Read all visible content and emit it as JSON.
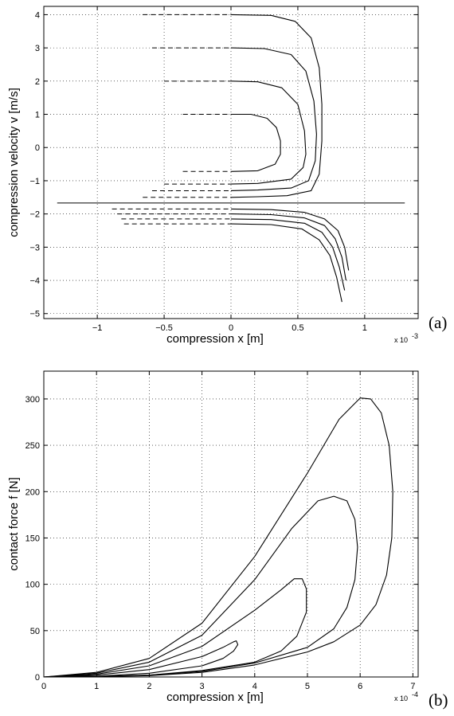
{
  "chart_data": [
    {
      "type": "line",
      "panel_label": "(a)",
      "title": "",
      "xlabel": "compression x [m]",
      "ylabel": "compression velocity v [m/s]",
      "x_multiplier": "x 10",
      "x_multiplier_exp": "-3",
      "xlim": [
        -1.4,
        1.4
      ],
      "ylim": [
        -5.15,
        4.25
      ],
      "xticks": [
        -1,
        -0.5,
        0,
        0.5,
        1
      ],
      "xtick_labels": [
        "−1",
        "−0.5",
        "0",
        "0.5",
        "1"
      ],
      "yticks": [
        -5,
        -4,
        -3,
        -2,
        -1,
        0,
        1,
        2,
        3,
        4
      ],
      "ytick_labels": [
        "−5",
        "−4",
        "−3",
        "−2",
        "−1",
        "0",
        "1",
        "2",
        "3",
        "4"
      ],
      "grid": true,
      "reference_line": {
        "y": -1.67,
        "x_range": [
          -1.3,
          1.3
        ]
      },
      "series": [
        {
          "curve": [
            [
              0,
              1
            ],
            [
              0.15,
              1.0
            ],
            [
              0.27,
              0.88
            ],
            [
              0.34,
              0.6
            ],
            [
              0.37,
              0.2
            ],
            [
              0.37,
              -0.2
            ],
            [
              0.33,
              -0.5
            ],
            [
              0.2,
              -0.7
            ],
            [
              0,
              -0.72
            ]
          ],
          "dash_top": [
            -0.36,
            0,
            1
          ],
          "dash_bottom": [
            -0.36,
            0,
            -0.72
          ]
        },
        {
          "curve": [
            [
              0,
              2
            ],
            [
              0.2,
              1.98
            ],
            [
              0.38,
              1.8
            ],
            [
              0.5,
              1.3
            ],
            [
              0.55,
              0.5
            ],
            [
              0.56,
              -0.2
            ],
            [
              0.54,
              -0.6
            ],
            [
              0.45,
              -0.95
            ],
            [
              0.2,
              -1.08
            ],
            [
              0,
              -1.1
            ]
          ],
          "dash_top": [
            -0.5,
            0,
            2
          ],
          "dash_bottom": [
            -0.5,
            0,
            -1.1
          ]
        },
        {
          "curve": [
            [
              0,
              3
            ],
            [
              0.25,
              2.98
            ],
            [
              0.45,
              2.8
            ],
            [
              0.56,
              2.3
            ],
            [
              0.62,
              1.4
            ],
            [
              0.64,
              0.4
            ],
            [
              0.63,
              -0.4
            ],
            [
              0.58,
              -1.0
            ],
            [
              0.45,
              -1.22
            ],
            [
              0.2,
              -1.28
            ],
            [
              0,
              -1.3
            ]
          ],
          "dash_top": [
            -0.59,
            0,
            3
          ],
          "dash_bottom": [
            -0.59,
            0,
            -1.3
          ]
        },
        {
          "curve": [
            [
              0,
              4
            ],
            [
              0.3,
              3.98
            ],
            [
              0.48,
              3.8
            ],
            [
              0.6,
              3.3
            ],
            [
              0.66,
              2.4
            ],
            [
              0.68,
              1.3
            ],
            [
              0.68,
              0.2
            ],
            [
              0.66,
              -0.8
            ],
            [
              0.6,
              -1.3
            ],
            [
              0.42,
              -1.45
            ],
            [
              0.2,
              -1.48
            ],
            [
              0,
              -1.5
            ]
          ],
          "dash_top": [
            -0.66,
            0,
            4
          ],
          "dash_bottom": [
            -0.66,
            0,
            -1.5
          ]
        },
        {
          "curve": [
            [
              0,
              -1.85
            ],
            [
              0.3,
              -1.87
            ],
            [
              0.55,
              -1.95
            ],
            [
              0.7,
              -2.15
            ],
            [
              0.8,
              -2.5
            ],
            [
              0.85,
              -3
            ],
            [
              0.88,
              -3.7
            ]
          ],
          "dash": [
            -0.89,
            0,
            -1.85
          ]
        },
        {
          "curve": [
            [
              0,
              -2.0
            ],
            [
              0.3,
              -2.02
            ],
            [
              0.55,
              -2.12
            ],
            [
              0.7,
              -2.35
            ],
            [
              0.78,
              -2.75
            ],
            [
              0.83,
              -3.3
            ],
            [
              0.86,
              -4.0
            ]
          ],
          "dash": [
            -0.85,
            0,
            -2.0
          ]
        },
        {
          "curve": [
            [
              0,
              -2.15
            ],
            [
              0.3,
              -2.17
            ],
            [
              0.55,
              -2.28
            ],
            [
              0.68,
              -2.55
            ],
            [
              0.76,
              -3.0
            ],
            [
              0.81,
              -3.6
            ],
            [
              0.85,
              -4.3
            ]
          ],
          "dash": [
            -0.82,
            0,
            -2.15
          ]
        },
        {
          "curve": [
            [
              0,
              -2.3
            ],
            [
              0.3,
              -2.32
            ],
            [
              0.53,
              -2.45
            ],
            [
              0.66,
              -2.78
            ],
            [
              0.74,
              -3.25
            ],
            [
              0.79,
              -3.9
            ],
            [
              0.83,
              -4.65
            ]
          ],
          "dash": [
            -0.8,
            0,
            -2.3
          ]
        }
      ]
    },
    {
      "type": "line",
      "panel_label": "(b)",
      "title": "",
      "xlabel": "compression x [m]",
      "ylabel": "contact force f [N]",
      "x_multiplier": "x 10",
      "x_multiplier_exp": "-4",
      "xlim": [
        0,
        7.1
      ],
      "ylim": [
        0,
        330
      ],
      "xticks": [
        0,
        1,
        2,
        3,
        4,
        5,
        6,
        7
      ],
      "xtick_labels": [
        "0",
        "1",
        "2",
        "3",
        "4",
        "5",
        "6",
        "7"
      ],
      "yticks": [
        0,
        50,
        100,
        150,
        200,
        250,
        300
      ],
      "ytick_labels": [
        "0",
        "50",
        "100",
        "150",
        "200",
        "250",
        "300"
      ],
      "grid": true,
      "series": [
        {
          "curve": [
            [
              0,
              0
            ],
            [
              1,
              2
            ],
            [
              2,
              8
            ],
            [
              3,
              22
            ],
            [
              3.4,
              32
            ],
            [
              3.6,
              38
            ],
            [
              3.65,
              39
            ],
            [
              3.68,
              35
            ],
            [
              3.6,
              28
            ],
            [
              3.4,
              20
            ],
            [
              3.0,
              12
            ],
            [
              2.0,
              4
            ],
            [
              1,
              0.8
            ],
            [
              0,
              0
            ]
          ]
        },
        {
          "curve": [
            [
              0,
              0
            ],
            [
              1,
              3
            ],
            [
              2,
              12
            ],
            [
              3,
              33
            ],
            [
              4,
              72
            ],
            [
              4.5,
              94
            ],
            [
              4.75,
              106
            ],
            [
              4.9,
              106
            ],
            [
              4.98,
              95
            ],
            [
              4.98,
              70
            ],
            [
              4.8,
              44
            ],
            [
              4.5,
              28
            ],
            [
              4.0,
              16
            ],
            [
              3.0,
              7
            ],
            [
              2,
              2
            ],
            [
              1,
              0.5
            ],
            [
              0,
              0
            ]
          ]
        },
        {
          "curve": [
            [
              0,
              0
            ],
            [
              1,
              4
            ],
            [
              2,
              16
            ],
            [
              3,
              45
            ],
            [
              4,
              105
            ],
            [
              4.7,
              160
            ],
            [
              5.2,
              190
            ],
            [
              5.5,
              195
            ],
            [
              5.75,
              190
            ],
            [
              5.9,
              170
            ],
            [
              5.95,
              140
            ],
            [
              5.9,
              105
            ],
            [
              5.75,
              75
            ],
            [
              5.5,
              52
            ],
            [
              5.0,
              32
            ],
            [
              4.0,
              15
            ],
            [
              3,
              6
            ],
            [
              2,
              2
            ],
            [
              1,
              0.5
            ],
            [
              0,
              0
            ]
          ]
        },
        {
          "curve": [
            [
              0,
              0
            ],
            [
              1,
              5
            ],
            [
              2,
              20
            ],
            [
              3,
              58
            ],
            [
              4,
              130
            ],
            [
              5,
              220
            ],
            [
              5.6,
              278
            ],
            [
              6.0,
              301
            ],
            [
              6.2,
              300
            ],
            [
              6.4,
              285
            ],
            [
              6.55,
              250
            ],
            [
              6.62,
              200
            ],
            [
              6.6,
              150
            ],
            [
              6.5,
              110
            ],
            [
              6.3,
              78
            ],
            [
              6.0,
              56
            ],
            [
              5.5,
              38
            ],
            [
              5.0,
              27
            ],
            [
              4.0,
              13
            ],
            [
              3,
              5
            ],
            [
              2,
              1.5
            ],
            [
              1,
              0.4
            ],
            [
              0,
              0
            ]
          ]
        }
      ]
    }
  ]
}
